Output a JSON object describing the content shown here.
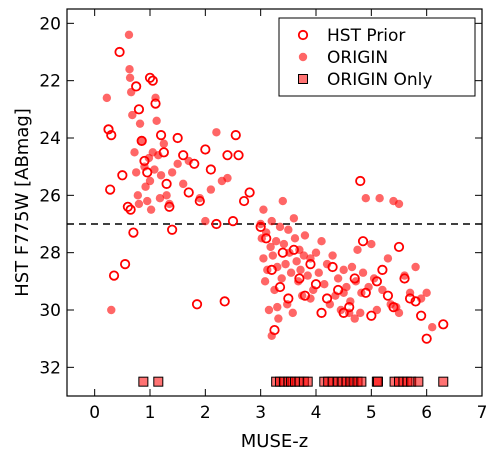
{
  "chart_data": {
    "type": "scatter",
    "xlabel": "MUSE-z",
    "ylabel": "HST F775W [ABmag]",
    "xlim": [
      -0.5,
      7
    ],
    "ylim": [
      33.0,
      19.5
    ],
    "y_inverted": true,
    "xticks": [
      "0",
      "1",
      "2",
      "3",
      "4",
      "5",
      "6",
      "7"
    ],
    "yticks": [
      "20",
      "22",
      "24",
      "26",
      "28",
      "30",
      "32"
    ],
    "grid": false,
    "legend_placement": "top-right",
    "reference_line": {
      "y": 27.0,
      "style": "dashed",
      "color": "#000000"
    },
    "colors": {
      "series": "#ff0000"
    },
    "series": [
      {
        "name": "HST Prior",
        "marker": "open-circle",
        "points": [
          [
            0.25,
            23.7
          ],
          [
            0.3,
            23.9
          ],
          [
            0.28,
            25.8
          ],
          [
            0.35,
            28.8
          ],
          [
            0.45,
            21.0
          ],
          [
            0.5,
            25.3
          ],
          [
            0.55,
            28.4
          ],
          [
            0.6,
            26.4
          ],
          [
            0.65,
            26.5
          ],
          [
            0.7,
            27.3
          ],
          [
            0.75,
            22.2
          ],
          [
            0.8,
            23.0
          ],
          [
            0.85,
            24.1
          ],
          [
            0.9,
            24.8
          ],
          [
            0.95,
            25.2
          ],
          [
            1.0,
            21.9
          ],
          [
            1.05,
            22.0
          ],
          [
            1.1,
            22.8
          ],
          [
            1.2,
            23.9
          ],
          [
            1.25,
            24.5
          ],
          [
            1.3,
            25.6
          ],
          [
            1.35,
            26.4
          ],
          [
            1.4,
            27.2
          ],
          [
            1.5,
            24.0
          ],
          [
            1.6,
            24.6
          ],
          [
            1.7,
            25.9
          ],
          [
            1.8,
            24.9
          ],
          [
            1.85,
            29.8
          ],
          [
            1.9,
            26.2
          ],
          [
            2.0,
            24.4
          ],
          [
            2.1,
            25.1
          ],
          [
            2.2,
            27.0
          ],
          [
            2.35,
            29.7
          ],
          [
            2.4,
            24.6
          ],
          [
            2.5,
            26.9
          ],
          [
            2.55,
            23.9
          ],
          [
            2.6,
            24.6
          ],
          [
            2.7,
            26.2
          ],
          [
            2.8,
            25.9
          ],
          [
            3.0,
            27.1
          ],
          [
            3.1,
            27.5
          ],
          [
            3.2,
            28.6
          ],
          [
            3.25,
            30.7
          ],
          [
            3.35,
            29.2
          ],
          [
            3.4,
            28.0
          ],
          [
            3.5,
            29.6
          ],
          [
            3.6,
            27.9
          ],
          [
            3.7,
            28.9
          ],
          [
            3.8,
            29.5
          ],
          [
            3.9,
            28.4
          ],
          [
            4.0,
            29.1
          ],
          [
            4.1,
            30.1
          ],
          [
            4.2,
            29.6
          ],
          [
            4.3,
            28.5
          ],
          [
            4.4,
            29.3
          ],
          [
            4.5,
            30.1
          ],
          [
            4.6,
            29.9
          ],
          [
            4.7,
            28.9
          ],
          [
            4.8,
            25.5
          ],
          [
            4.85,
            27.6
          ],
          [
            4.9,
            29.4
          ],
          [
            5.0,
            30.2
          ],
          [
            5.1,
            29.0
          ],
          [
            5.2,
            28.6
          ],
          [
            5.3,
            29.5
          ],
          [
            5.4,
            29.9
          ],
          [
            5.5,
            27.8
          ],
          [
            5.6,
            28.9
          ],
          [
            5.7,
            29.6
          ],
          [
            5.8,
            29.7
          ],
          [
            5.9,
            30.2
          ],
          [
            6.0,
            31.0
          ],
          [
            6.3,
            30.5
          ]
        ]
      },
      {
        "name": "ORIGIN",
        "marker": "filled-circle",
        "points": [
          [
            0.22,
            22.6
          ],
          [
            0.3,
            30.0
          ],
          [
            0.62,
            20.4
          ],
          [
            0.63,
            21.6
          ],
          [
            0.64,
            21.9
          ],
          [
            0.66,
            22.4
          ],
          [
            0.68,
            23.2
          ],
          [
            0.72,
            24.5
          ],
          [
            0.75,
            25.2
          ],
          [
            0.78,
            26.0
          ],
          [
            0.8,
            26.3
          ],
          [
            0.82,
            23.5
          ],
          [
            0.85,
            24.1
          ],
          [
            0.9,
            25.0
          ],
          [
            0.92,
            25.7
          ],
          [
            0.95,
            26.2
          ],
          [
            0.98,
            24.7
          ],
          [
            1.0,
            25.5
          ],
          [
            1.02,
            26.5
          ],
          [
            1.05,
            24.5
          ],
          [
            1.08,
            25.1
          ],
          [
            1.1,
            22.6
          ],
          [
            1.12,
            23.4
          ],
          [
            1.15,
            24.6
          ],
          [
            1.18,
            26.1
          ],
          [
            1.2,
            25.3
          ],
          [
            1.25,
            24.2
          ],
          [
            1.3,
            26.0
          ],
          [
            1.35,
            26.3
          ],
          [
            1.4,
            25.2
          ],
          [
            1.5,
            24.9
          ],
          [
            1.6,
            25.6
          ],
          [
            1.7,
            24.8
          ],
          [
            1.9,
            26.1
          ],
          [
            2.0,
            26.9
          ],
          [
            2.1,
            25.8
          ],
          [
            2.2,
            23.8
          ],
          [
            2.3,
            25.5
          ],
          [
            2.4,
            25.4
          ],
          [
            3.0,
            27.0
          ],
          [
            3.02,
            27.5
          ],
          [
            3.05,
            26.5
          ],
          [
            3.05,
            28.2
          ],
          [
            3.08,
            29.0
          ],
          [
            3.1,
            27.3
          ],
          [
            3.12,
            28.6
          ],
          [
            3.15,
            30.0
          ],
          [
            3.18,
            27.8
          ],
          [
            3.2,
            26.9
          ],
          [
            3.22,
            28.1
          ],
          [
            3.25,
            29.3
          ],
          [
            3.28,
            27.6
          ],
          [
            3.3,
            28.5
          ],
          [
            3.32,
            30.3
          ],
          [
            3.35,
            27.1
          ],
          [
            3.38,
            28.9
          ],
          [
            3.4,
            26.2
          ],
          [
            3.42,
            27.7
          ],
          [
            3.45,
            28.4
          ],
          [
            3.48,
            29.8
          ],
          [
            3.5,
            27.2
          ],
          [
            3.52,
            28.0
          ],
          [
            3.55,
            28.7
          ],
          [
            3.58,
            30.1
          ],
          [
            3.6,
            26.8
          ],
          [
            3.62,
            27.5
          ],
          [
            3.65,
            28.3
          ],
          [
            3.68,
            29.0
          ],
          [
            3.7,
            27.9
          ],
          [
            3.72,
            28.6
          ],
          [
            3.75,
            29.5
          ],
          [
            3.78,
            28.1
          ],
          [
            3.8,
            27.4
          ],
          [
            3.85,
            28.8
          ],
          [
            3.9,
            28.2
          ],
          [
            3.95,
            29.3
          ],
          [
            4.0,
            28.0
          ],
          [
            4.05,
            28.7
          ],
          [
            4.1,
            27.6
          ],
          [
            4.15,
            29.1
          ],
          [
            4.2,
            28.4
          ],
          [
            4.25,
            29.8
          ],
          [
            4.3,
            28.1
          ],
          [
            4.35,
            29.5
          ],
          [
            4.4,
            28.9
          ],
          [
            4.45,
            30.0
          ],
          [
            4.5,
            28.6
          ],
          [
            4.55,
            29.2
          ],
          [
            4.6,
            30.1
          ],
          [
            4.62,
            29.7
          ],
          [
            4.65,
            28.5
          ],
          [
            4.7,
            30.3
          ],
          [
            4.72,
            29.0
          ],
          [
            4.75,
            27.9
          ],
          [
            4.8,
            30.1
          ],
          [
            4.82,
            29.4
          ],
          [
            4.85,
            28.7
          ],
          [
            4.9,
            26.1
          ],
          [
            4.95,
            29.2
          ],
          [
            5.0,
            27.7
          ],
          [
            5.05,
            28.9
          ],
          [
            5.1,
            30.0
          ],
          [
            5.15,
            26.1
          ],
          [
            5.2,
            29.3
          ],
          [
            5.3,
            28.2
          ],
          [
            5.35,
            29.8
          ],
          [
            5.4,
            26.2
          ],
          [
            5.45,
            29.9
          ],
          [
            5.5,
            26.3
          ],
          [
            5.6,
            28.8
          ],
          [
            5.7,
            29.4
          ],
          [
            5.8,
            28.5
          ],
          [
            5.9,
            29.6
          ],
          [
            6.0,
            29.4
          ],
          [
            6.1,
            30.6
          ],
          [
            3.2,
            30.9
          ],
          [
            3.3,
            29.9
          ],
          [
            3.9,
            29.6
          ],
          [
            4.5,
            29.4
          ],
          [
            5.5,
            30.1
          ]
        ]
      },
      {
        "name": "ORIGIN Only",
        "marker": "filled-square",
        "points": [
          [
            0.88,
            32.5
          ],
          [
            1.15,
            32.5
          ],
          [
            3.28,
            32.5
          ],
          [
            3.35,
            32.5
          ],
          [
            3.42,
            32.5
          ],
          [
            3.5,
            32.5
          ],
          [
            3.55,
            32.5
          ],
          [
            3.62,
            32.5
          ],
          [
            3.7,
            32.5
          ],
          [
            3.78,
            32.5
          ],
          [
            3.85,
            32.5
          ],
          [
            4.15,
            32.5
          ],
          [
            4.22,
            32.5
          ],
          [
            4.3,
            32.5
          ],
          [
            4.4,
            32.5
          ],
          [
            4.48,
            32.5
          ],
          [
            4.55,
            32.5
          ],
          [
            4.62,
            32.5
          ],
          [
            4.68,
            32.5
          ],
          [
            4.75,
            32.5
          ],
          [
            4.82,
            32.5
          ],
          [
            5.1,
            32.5
          ],
          [
            5.12,
            32.5
          ],
          [
            5.42,
            32.5
          ],
          [
            5.5,
            32.5
          ],
          [
            5.58,
            32.5
          ],
          [
            5.65,
            32.5
          ],
          [
            5.72,
            32.5
          ],
          [
            5.85,
            32.5
          ],
          [
            6.3,
            32.5
          ]
        ]
      }
    ]
  }
}
